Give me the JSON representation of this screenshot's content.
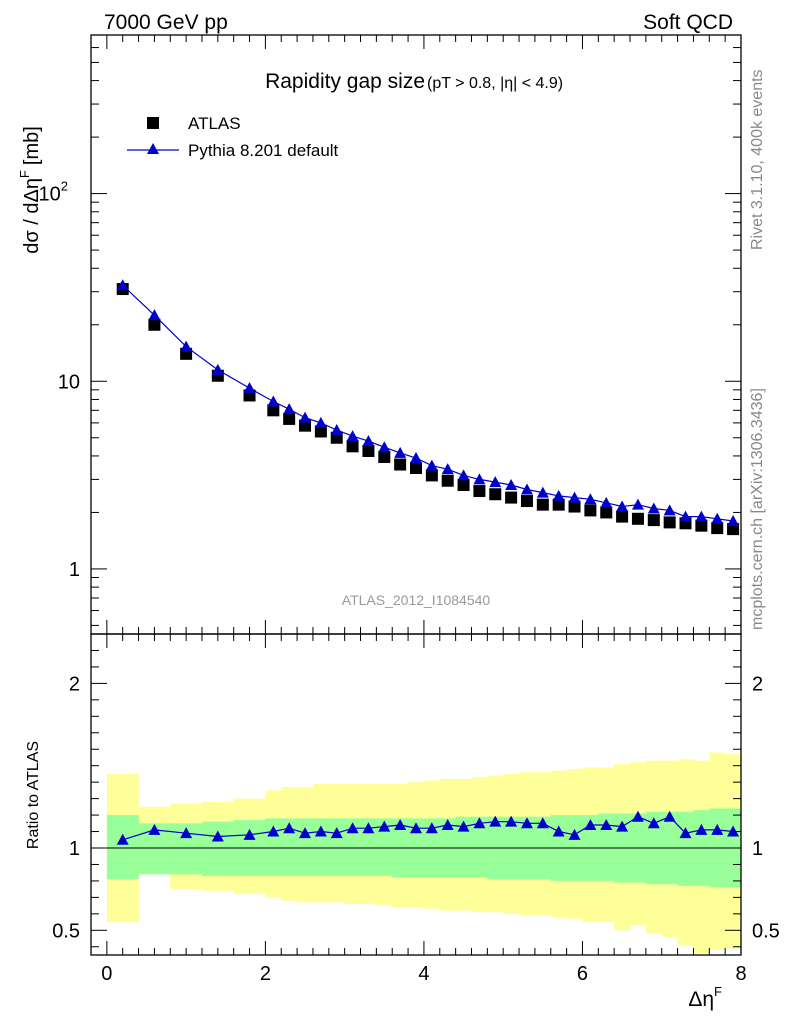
{
  "header": {
    "left": "7000 GeV pp",
    "right": "Soft QCD"
  },
  "side_labels": {
    "events": "Rivet 3.1.10,  400k events",
    "source": "mcplots.cern.ch [arXiv:1306.3436]"
  },
  "colors": {
    "data": "#000000",
    "mc": "#0000cc",
    "band_inner": "#99ff99",
    "band_outer": "#ffff99",
    "frame": "#000000"
  },
  "chart_data": [
    {
      "type": "scatter",
      "panel": "main",
      "title": "Rapidity gap size",
      "subtitle": "(pT > 0.8, |η| < 4.9)",
      "ylabel": "dσ / dΔη",
      "ylabel_sup": "F",
      "ylabel_unit": "[mb]",
      "watermark": "ATLAS_2012_I1084540",
      "yscale": "log",
      "xlim": [
        -0.2,
        8.0
      ],
      "ylim": [
        0.45,
        700
      ],
      "x_ticks": [
        0,
        2,
        4,
        6,
        8
      ],
      "y_ticks": [
        {
          "value": 1,
          "label": "1"
        },
        {
          "value": 10,
          "label": "10"
        },
        {
          "value": 100,
          "label": "10",
          "exp": "2"
        }
      ],
      "legend": [
        {
          "label": "ATLAS",
          "marker": "square"
        },
        {
          "label": "Pythia 8.201 default",
          "marker": "triangle"
        }
      ],
      "x": [
        0.2,
        0.6,
        1.0,
        1.4,
        1.8,
        2.1,
        2.3,
        2.5,
        2.7,
        2.9,
        3.1,
        3.3,
        3.5,
        3.7,
        3.9,
        4.1,
        4.3,
        4.5,
        4.7,
        4.9,
        5.1,
        5.3,
        5.5,
        5.7,
        5.9,
        6.1,
        6.3,
        6.5,
        6.7,
        6.9,
        7.1,
        7.3,
        7.5,
        7.7,
        7.9
      ],
      "series": [
        {
          "name": "ATLAS",
          "values": [
            31.0,
            20.0,
            14.0,
            10.7,
            8.4,
            7.0,
            6.3,
            5.8,
            5.4,
            5.0,
            4.5,
            4.25,
            3.95,
            3.6,
            3.45,
            3.15,
            2.95,
            2.8,
            2.6,
            2.5,
            2.4,
            2.3,
            2.2,
            2.2,
            2.15,
            2.05,
            2.0,
            1.9,
            1.85,
            1.82,
            1.77,
            1.75,
            1.7,
            1.65,
            1.63
          ]
        },
        {
          "name": "Pythia 8.201 default",
          "values": [
            32.5,
            22.5,
            15.3,
            11.5,
            9.2,
            7.8,
            7.1,
            6.4,
            6.0,
            5.5,
            5.1,
            4.8,
            4.45,
            4.15,
            3.9,
            3.55,
            3.4,
            3.15,
            3.0,
            2.9,
            2.8,
            2.65,
            2.55,
            2.45,
            2.4,
            2.35,
            2.25,
            2.15,
            2.2,
            2.1,
            2.05,
            1.9,
            1.9,
            1.85,
            1.8
          ]
        }
      ]
    },
    {
      "type": "line",
      "panel": "ratio",
      "ylabel": "Ratio to ATLAS",
      "xlabel": "Δη",
      "xlabel_sup": "F",
      "xlim": [
        -0.2,
        8.0
      ],
      "ylim": [
        0.35,
        2.3
      ],
      "x_ticks": [
        0,
        2,
        4,
        6,
        8
      ],
      "y_ticks": [
        0.5,
        1,
        2
      ],
      "reference": 1,
      "band_edges": [
        0.0,
        0.4,
        0.8,
        1.2,
        1.6,
        2.0,
        2.2,
        2.4,
        2.6,
        2.8,
        3.0,
        3.2,
        3.4,
        3.6,
        3.8,
        4.0,
        4.2,
        4.4,
        4.6,
        4.8,
        5.0,
        5.2,
        5.4,
        5.6,
        5.8,
        6.0,
        6.2,
        6.4,
        6.6,
        6.8,
        7.0,
        7.2,
        7.4,
        7.6,
        7.8,
        8.0
      ],
      "band_inner": {
        "upper": [
          1.2,
          1.15,
          1.15,
          1.16,
          1.17,
          1.18,
          1.18,
          1.18,
          1.18,
          1.18,
          1.18,
          1.18,
          1.18,
          1.18,
          1.18,
          1.18,
          1.18,
          1.19,
          1.19,
          1.19,
          1.19,
          1.19,
          1.19,
          1.2,
          1.2,
          1.2,
          1.21,
          1.21,
          1.21,
          1.22,
          1.22,
          1.22,
          1.23,
          1.24,
          1.24
        ],
        "lower": [
          0.81,
          0.84,
          0.84,
          0.83,
          0.83,
          0.83,
          0.83,
          0.83,
          0.83,
          0.83,
          0.83,
          0.83,
          0.83,
          0.82,
          0.82,
          0.82,
          0.82,
          0.82,
          0.82,
          0.81,
          0.81,
          0.81,
          0.81,
          0.8,
          0.8,
          0.8,
          0.8,
          0.79,
          0.79,
          0.78,
          0.78,
          0.77,
          0.77,
          0.76,
          0.76
        ]
      },
      "band_outer": {
        "upper": [
          1.45,
          1.25,
          1.27,
          1.28,
          1.3,
          1.35,
          1.37,
          1.37,
          1.39,
          1.39,
          1.39,
          1.39,
          1.39,
          1.39,
          1.4,
          1.41,
          1.42,
          1.42,
          1.43,
          1.44,
          1.45,
          1.46,
          1.46,
          1.47,
          1.48,
          1.49,
          1.49,
          1.51,
          1.52,
          1.53,
          1.53,
          1.54,
          1.53,
          1.58,
          1.57
        ],
        "lower": [
          0.55,
          0.85,
          0.75,
          0.74,
          0.72,
          0.7,
          0.68,
          0.67,
          0.67,
          0.67,
          0.66,
          0.66,
          0.65,
          0.64,
          0.64,
          0.63,
          0.62,
          0.62,
          0.61,
          0.61,
          0.6,
          0.59,
          0.59,
          0.58,
          0.57,
          0.55,
          0.55,
          0.5,
          0.53,
          0.48,
          0.46,
          0.41,
          0.36,
          0.38,
          0.39
        ]
      },
      "x": [
        0.2,
        0.6,
        1.0,
        1.4,
        1.8,
        2.1,
        2.3,
        2.5,
        2.7,
        2.9,
        3.1,
        3.3,
        3.5,
        3.7,
        3.9,
        4.1,
        4.3,
        4.5,
        4.7,
        4.9,
        5.1,
        5.3,
        5.5,
        5.7,
        5.9,
        6.1,
        6.3,
        6.5,
        6.7,
        6.9,
        7.1,
        7.3,
        7.5,
        7.7,
        7.9
      ],
      "series": [
        {
          "name": "Pythia 8.201 default",
          "values": [
            1.05,
            1.11,
            1.09,
            1.07,
            1.08,
            1.1,
            1.12,
            1.09,
            1.1,
            1.09,
            1.12,
            1.12,
            1.13,
            1.14,
            1.12,
            1.12,
            1.14,
            1.13,
            1.15,
            1.16,
            1.16,
            1.15,
            1.15,
            1.1,
            1.08,
            1.14,
            1.14,
            1.13,
            1.19,
            1.15,
            1.19,
            1.09,
            1.11,
            1.11,
            1.1
          ]
        }
      ]
    }
  ]
}
